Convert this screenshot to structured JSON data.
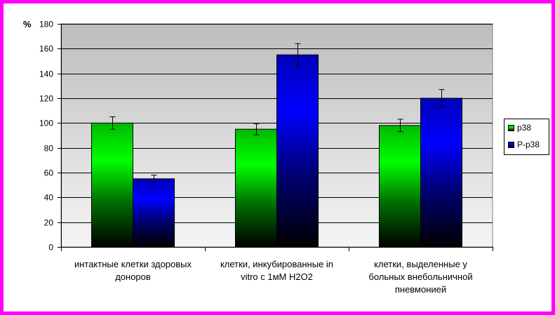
{
  "colors": {
    "frame": "#ff00ff"
  },
  "chart_data": {
    "type": "bar",
    "ylabel": "%",
    "ylim": [
      0,
      180
    ],
    "y_ticks": [
      0,
      20,
      40,
      60,
      80,
      100,
      120,
      140,
      160,
      180
    ],
    "categories": [
      "интактные клетки здоровых\nдоноров",
      "клетки, инкубированные in\nvitro с 1мМ H2O2",
      "клетки, выделенные у\nбольных внебольничной\nпневмонией"
    ],
    "series": [
      {
        "name": "p38",
        "color": "#00ff00",
        "values": [
          100,
          95,
          98
        ],
        "errors": [
          5,
          4.5,
          5
        ]
      },
      {
        "name": "P-p38",
        "color": "#0000ff",
        "values": [
          55,
          155,
          120
        ],
        "errors": [
          3,
          9,
          7
        ]
      }
    ],
    "error_bars": true,
    "grid": true,
    "legend": "right"
  }
}
